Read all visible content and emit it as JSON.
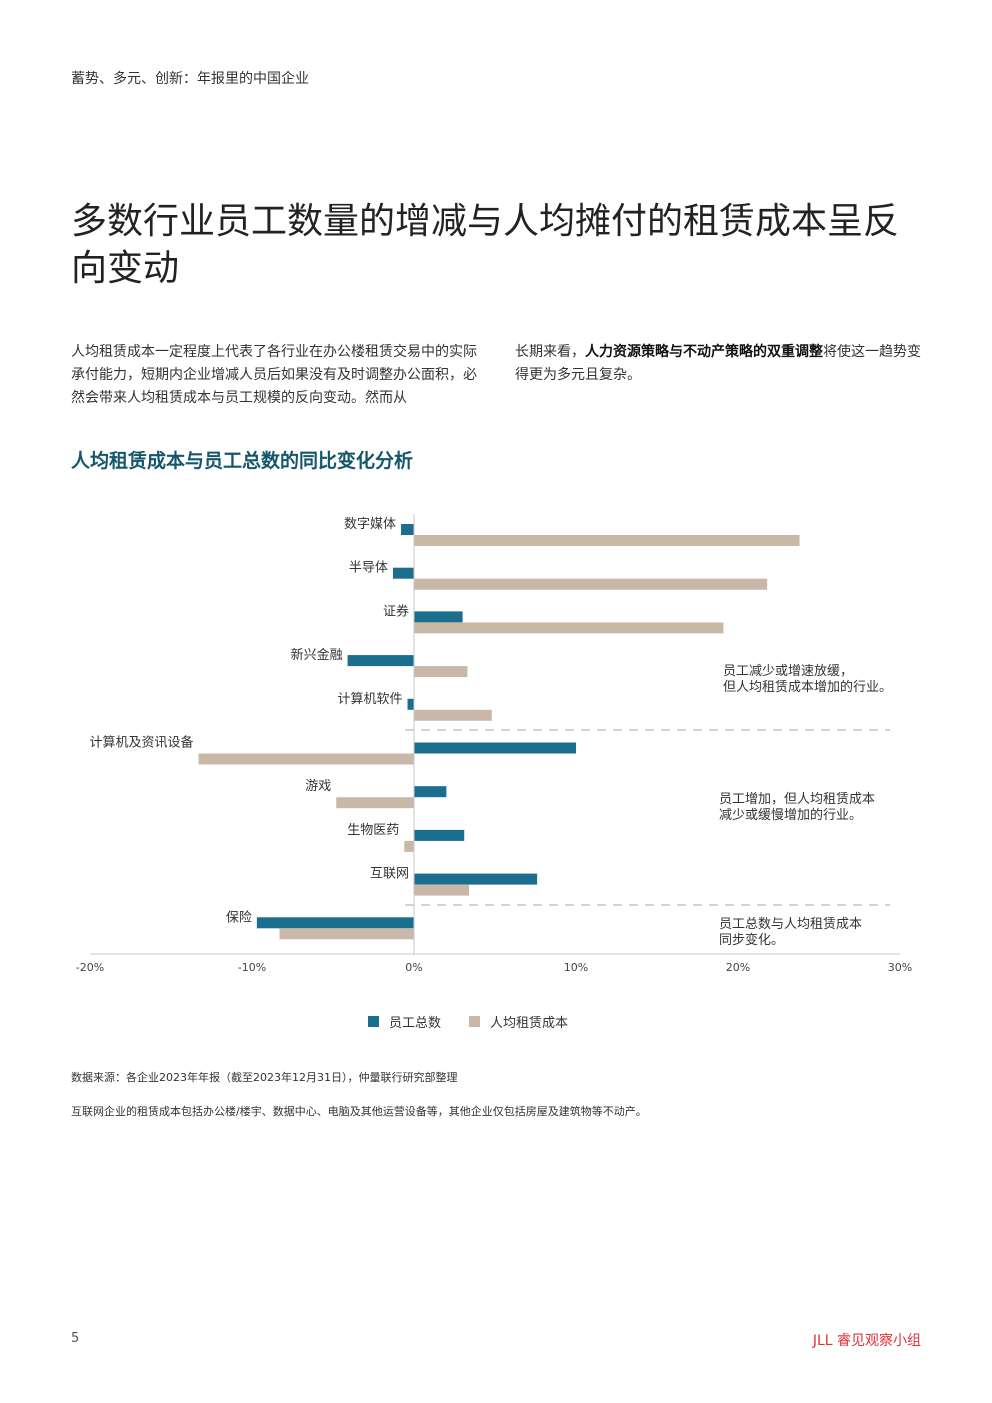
{
  "header": {
    "subtitle": "蓄势、多元、创新：年报里的中国企业"
  },
  "title": "多数行业员工数量的增减与人均摊付的租赁成本呈反向变动",
  "body": {
    "left": "人均租赁成本一定程度上代表了各行业在办公楼租赁交易中的实际承付能力，短期内企业增减人员后如果没有及时调整办公面积，必然会带来人均租赁成本与员工规模的反向变动。然而从",
    "right_pre": "长期来看，",
    "right_bold": "人力资源策略与不动产策略的双重调整",
    "right_post": "将使这一趋势变得更为多元且复杂。"
  },
  "chart_data": {
    "type": "bar",
    "orientation": "horizontal",
    "title": "人均租赁成本与员工总数的同比变化分析",
    "categories": [
      "数字媒体",
      "半导体",
      "证券",
      "新兴金融",
      "计算机软件",
      "计算机及资讯设备",
      "游戏",
      "生物医药",
      "互联网",
      "保险"
    ],
    "series": [
      {
        "name": "员工总数",
        "color": "#1a6e8e",
        "values": [
          -0.8,
          -1.3,
          3.0,
          -4.1,
          -0.4,
          10.0,
          2.0,
          3.1,
          7.6,
          -9.7
        ]
      },
      {
        "name": "人均租赁成本",
        "color": "#c9b8a8",
        "values": [
          23.8,
          21.8,
          19.1,
          3.3,
          4.8,
          -13.3,
          -4.8,
          -0.6,
          3.4,
          -8.3
        ]
      }
    ],
    "xlim": [
      -20,
      30
    ],
    "xticks": [
      "-20%",
      "-10%",
      "0%",
      "10%",
      "20%",
      "30%"
    ],
    "annotations": [
      "员工减少或增速放缓，\n但人均租赁成本增加的行业。",
      "员工增加，但人均租赁成本\n减少或缓慢增加的行业。",
      "员工总数与人均租赁成本\n同步变化。"
    ],
    "legend_position": "bottom"
  },
  "footnotes": {
    "source": "数据来源：各企业2023年年报（截至2023年12月31日），仲量联行研究部整理",
    "note": "互联网企业的租赁成本包括办公楼/楼宇、数据中心、电脑及其他运营设备等，其他企业仅包括房屋及建筑物等不动产。"
  },
  "footer": {
    "page": "5",
    "brand": "JLL 睿见观察小组"
  }
}
